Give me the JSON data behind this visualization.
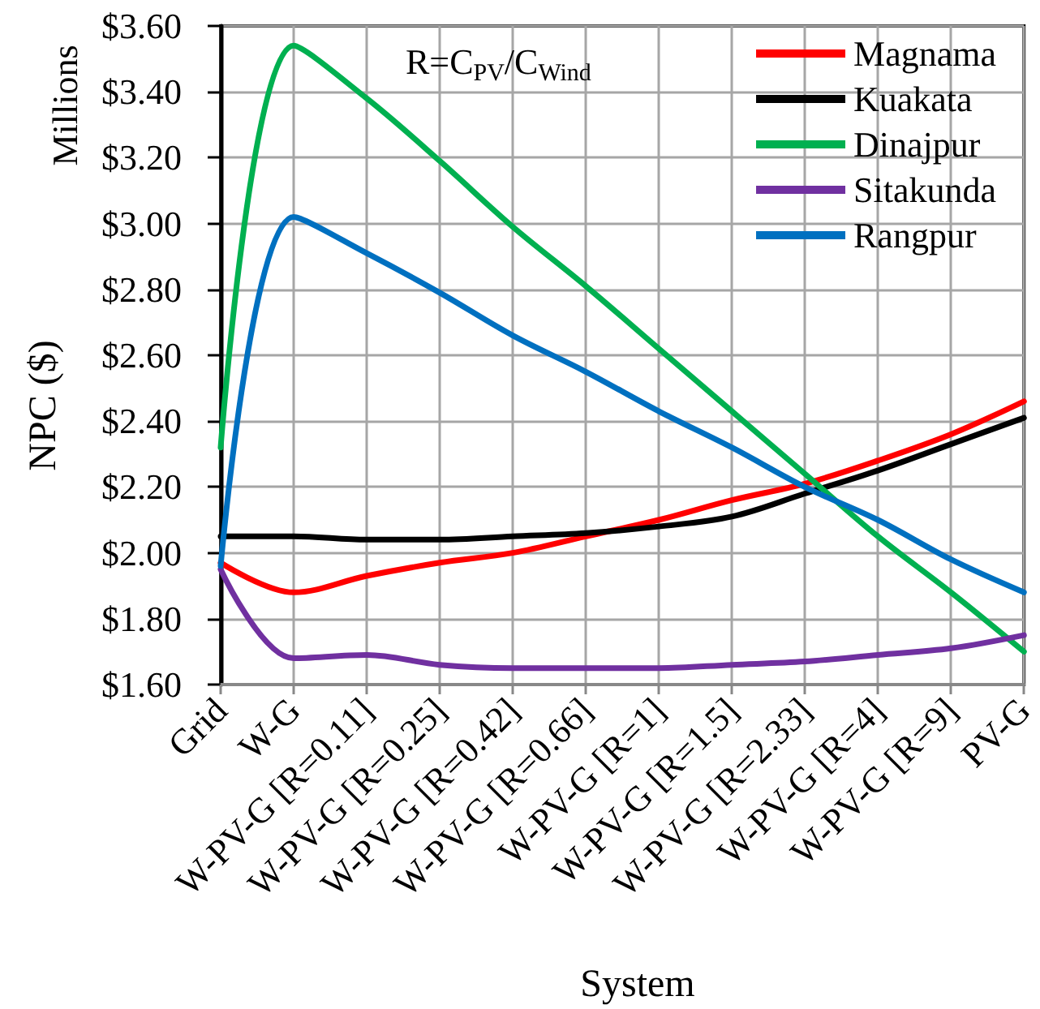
{
  "chart_data": {
    "type": "line",
    "xlabel": "System",
    "ylabel": "NPC ($)",
    "annotations": [
      "R=C$_{PV}$/C$_{Wind}$",
      "Millions"
    ],
    "categories": [
      "Grid",
      "W-G",
      "W-PV-G [R=0.11]",
      "W-PV-G [R=0.25]",
      "W-PV-G [R=0.42]",
      "W-PV-G [R=0.66]",
      "W-PV-G [R=1]",
      "W-PV-G [R=1.5]",
      "W-PV-G [R=2.33]",
      "W-PV-G [R=4]",
      "W-PV-G [R=9]",
      "PV-G"
    ],
    "series": [
      {
        "name": "Magnama",
        "color": "#ff0000",
        "values": [
          1.97,
          1.88,
          1.93,
          1.97,
          2.0,
          2.05,
          2.1,
          2.16,
          2.21,
          2.28,
          2.36,
          2.46
        ]
      },
      {
        "name": "Kuakata",
        "color": "#000000",
        "values": [
          2.05,
          2.05,
          2.04,
          2.04,
          2.05,
          2.06,
          2.08,
          2.11,
          2.18,
          2.25,
          2.33,
          2.41
        ]
      },
      {
        "name": "Dinajpur",
        "color": "#00b050",
        "values": [
          2.32,
          3.54,
          3.38,
          3.19,
          2.99,
          2.81,
          2.62,
          2.43,
          2.24,
          2.05,
          1.88,
          1.7
        ]
      },
      {
        "name": "Sitakunda",
        "color": "#7030a0",
        "values": [
          1.95,
          1.68,
          1.69,
          1.66,
          1.65,
          1.65,
          1.65,
          1.66,
          1.67,
          1.69,
          1.71,
          1.75
        ]
      },
      {
        "name": "Rangpur",
        "color": "#0070c0",
        "values": [
          1.96,
          3.02,
          2.91,
          2.79,
          2.66,
          2.55,
          2.43,
          2.32,
          2.2,
          2.1,
          1.98,
          1.88
        ]
      }
    ],
    "ylim": [
      1.6,
      3.6
    ],
    "yticks": [
      {
        "value": 1.6,
        "label": "$1.60"
      },
      {
        "value": 1.8,
        "label": "$1.80"
      },
      {
        "value": 2.0,
        "label": "$2.00"
      },
      {
        "value": 2.2,
        "label": "$2.20"
      },
      {
        "value": 2.4,
        "label": "$2.40"
      },
      {
        "value": 2.6,
        "label": "$2.60"
      },
      {
        "value": 2.8,
        "label": "$2.80"
      },
      {
        "value": 3.0,
        "label": "$3.00"
      },
      {
        "value": 3.2,
        "label": "$3.20"
      },
      {
        "value": 3.4,
        "label": "$3.40"
      },
      {
        "value": 3.6,
        "label": "$3.60"
      }
    ],
    "grid": true,
    "legend": "top right",
    "marker": "none"
  }
}
